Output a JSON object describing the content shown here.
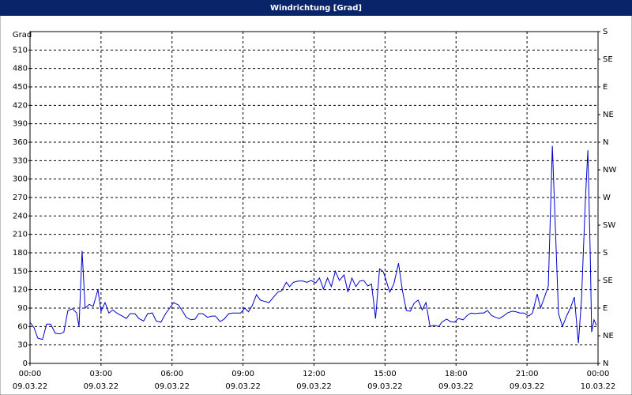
{
  "chart_data": {
    "type": "line",
    "title": "Windrichtung [Grad]",
    "y_label": "Grad",
    "xlim": [
      0,
      24
    ],
    "xticks": [
      {
        "value": 0,
        "label": "00:00",
        "sublabel": "09.03.22"
      },
      {
        "value": 3,
        "label": "03:00",
        "sublabel": "09.03.22"
      },
      {
        "value": 6,
        "label": "06:00",
        "sublabel": "09.03.22"
      },
      {
        "value": 9,
        "label": "09:00",
        "sublabel": "09.03.22"
      },
      {
        "value": 12,
        "label": "12:00",
        "sublabel": "09.03.22"
      },
      {
        "value": 15,
        "label": "15:00",
        "sublabel": "09.03.22"
      },
      {
        "value": 18,
        "label": "18:00",
        "sublabel": "09.03.22"
      },
      {
        "value": 21,
        "label": "21:00",
        "sublabel": "09.03.22"
      },
      {
        "value": 24,
        "label": "00:00",
        "sublabel": "10.03.22"
      }
    ],
    "ylim": [
      0,
      540
    ],
    "yticks": [
      0,
      30,
      60,
      90,
      120,
      150,
      180,
      210,
      240,
      270,
      300,
      330,
      360,
      390,
      420,
      450,
      480,
      510
    ],
    "y2lim": [
      0,
      540
    ],
    "y2ticks": [
      {
        "value": 0,
        "label": "N"
      },
      {
        "value": 45,
        "label": "NE"
      },
      {
        "value": 90,
        "label": "E"
      },
      {
        "value": 135,
        "label": "SE"
      },
      {
        "value": 180,
        "label": "S"
      },
      {
        "value": 225,
        "label": "SW"
      },
      {
        "value": 270,
        "label": "W"
      },
      {
        "value": 315,
        "label": "NW"
      },
      {
        "value": 360,
        "label": "N"
      },
      {
        "value": 405,
        "label": "NE"
      },
      {
        "value": 450,
        "label": "E"
      },
      {
        "value": 495,
        "label": "SE"
      },
      {
        "value": 540,
        "label": "S"
      }
    ],
    "grid": true,
    "x": [
      0,
      0.17,
      0.33,
      0.53,
      0.7,
      0.87,
      1.07,
      1.27,
      1.43,
      1.6,
      1.8,
      1.97,
      2.07,
      2.2,
      2.33,
      2.5,
      2.67,
      2.87,
      3.0,
      3.17,
      3.33,
      3.5,
      3.7,
      3.9,
      4.07,
      4.23,
      4.43,
      4.6,
      4.8,
      4.97,
      5.17,
      5.33,
      5.53,
      5.73,
      5.9,
      6.07,
      6.27,
      6.43,
      6.6,
      6.8,
      6.97,
      7.13,
      7.3,
      7.5,
      7.67,
      7.83,
      8.03,
      8.2,
      8.4,
      8.57,
      8.73,
      8.9,
      9.07,
      9.23,
      9.4,
      9.57,
      9.73,
      9.9,
      10.1,
      10.27,
      10.47,
      10.63,
      10.83,
      10.97,
      11.13,
      11.33,
      11.53,
      11.7,
      11.87,
      12.07,
      12.23,
      12.4,
      12.57,
      12.73,
      12.9,
      13.07,
      13.27,
      13.43,
      13.6,
      13.77,
      13.93,
      14.1,
      14.27,
      14.43,
      14.6,
      14.77,
      14.93,
      15.07,
      15.2,
      15.37,
      15.57,
      15.73,
      15.9,
      16.07,
      16.23,
      16.4,
      16.57,
      16.73,
      16.9,
      17.07,
      17.27,
      17.4,
      17.6,
      17.77,
      17.93,
      18.1,
      18.3,
      18.47,
      18.63,
      18.8,
      19.0,
      19.17,
      19.33,
      19.5,
      19.67,
      19.83,
      20.0,
      20.17,
      20.37,
      20.53,
      20.7,
      20.87,
      21.07,
      21.23,
      21.43,
      21.57,
      21.73,
      21.9,
      22.07,
      22.2,
      22.33,
      22.5,
      22.67,
      22.83,
      23.0,
      23.17,
      23.3,
      23.47,
      23.57,
      23.67,
      23.73,
      23.83,
      23.93
    ],
    "series": [
      {
        "color": "#0000cc",
        "values": [
          67,
          58,
          41,
          39,
          64,
          64,
          49,
          48,
          51,
          86,
          89,
          82,
          60,
          183,
          90,
          96,
          93,
          120,
          85,
          99,
          82,
          87,
          81,
          77,
          73,
          81,
          81,
          73,
          69,
          81,
          82,
          69,
          67,
          81,
          90,
          99,
          95,
          86,
          75,
          71,
          72,
          81,
          81,
          75,
          77,
          77,
          68,
          72,
          81,
          82,
          82,
          82,
          90,
          84,
          95,
          112,
          103,
          101,
          99,
          107,
          116,
          118,
          132,
          125,
          132,
          134,
          134,
          132,
          135,
          131,
          139,
          121,
          139,
          125,
          150,
          135,
          144,
          116,
          139,
          125,
          134,
          135,
          126,
          129,
          73,
          154,
          149,
          132,
          116,
          129,
          163,
          120,
          86,
          85,
          98,
          103,
          87,
          99,
          60,
          62,
          60,
          67,
          72,
          68,
          67,
          73,
          71,
          78,
          82,
          81,
          82,
          82,
          86,
          78,
          75,
          73,
          77,
          82,
          85,
          84,
          82,
          82,
          77,
          82,
          113,
          90,
          107,
          126,
          354,
          219,
          81,
          60,
          77,
          90,
          108,
          33,
          103,
          270,
          347,
          180,
          51,
          71,
          62
        ]
      }
    ]
  }
}
